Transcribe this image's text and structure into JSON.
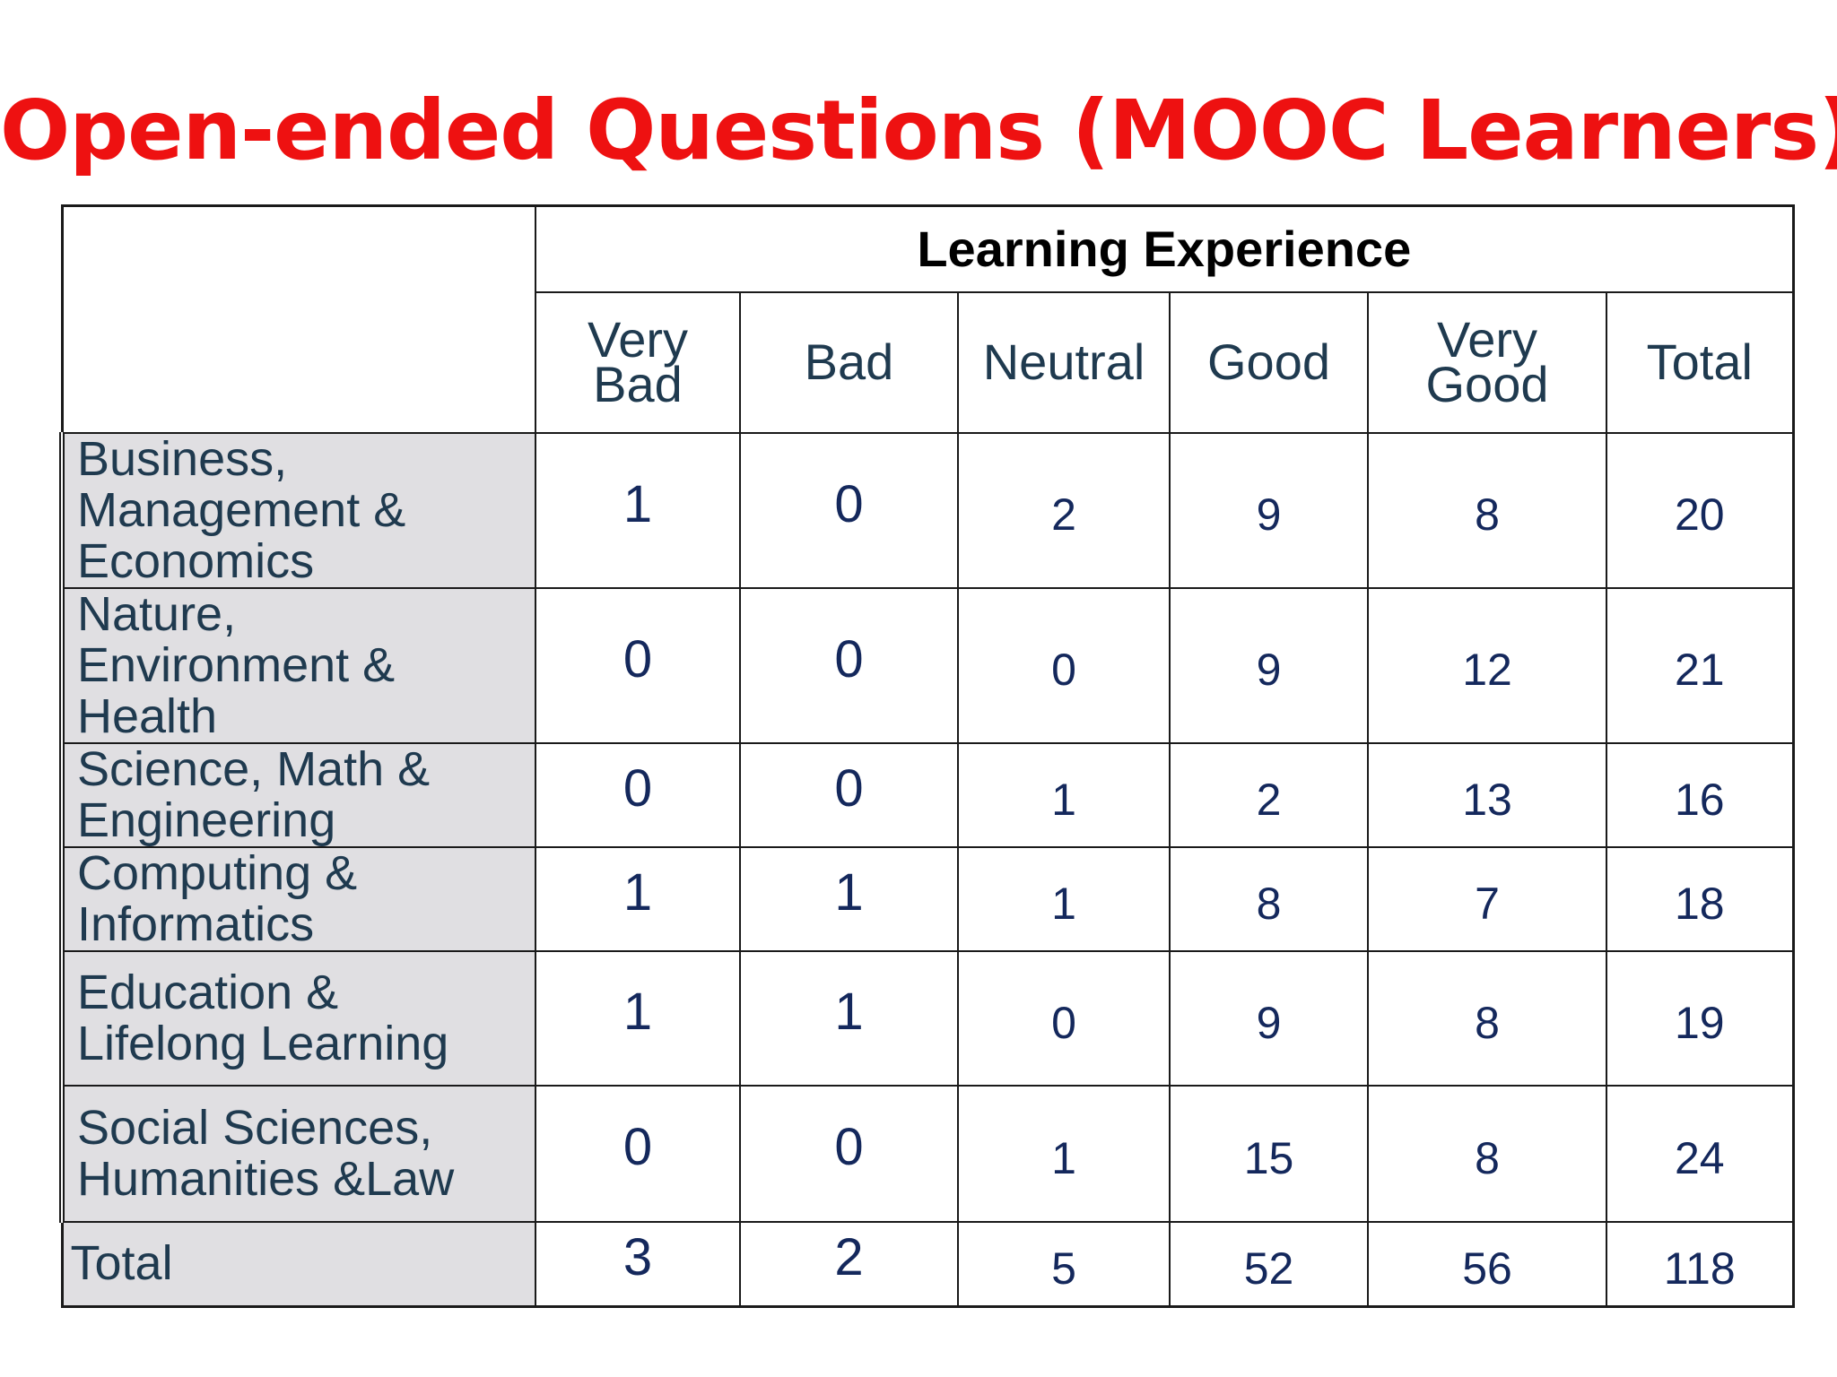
{
  "title": "Open-ended Questions (MOOC Learners)",
  "table": {
    "group_header": "Learning Experience",
    "columns": [
      "Very\nBad",
      "Bad",
      "Neutral",
      "Good",
      "Very\nGood",
      "Total"
    ],
    "rows": [
      {
        "label": "Business,\nManagement &\nEconomics",
        "values": [
          "1",
          "0",
          "2",
          "9",
          "8",
          "20"
        ]
      },
      {
        "label": "Nature,\nEnvironment &\nHealth",
        "values": [
          "0",
          "0",
          "0",
          "9",
          "12",
          "21"
        ]
      },
      {
        "label": "Science, Math &\nEngineering",
        "values": [
          "0",
          "0",
          "1",
          "2",
          "13",
          "16"
        ]
      },
      {
        "label": "Computing &\nInformatics",
        "values": [
          "1",
          "1",
          "1",
          "8",
          "7",
          "18"
        ]
      },
      {
        "label": "Education &\nLifelong Learning",
        "values": [
          "1",
          "1",
          "0",
          "9",
          "8",
          "19"
        ]
      },
      {
        "label": "Social Sciences,\nHumanities &Law",
        "values": [
          "0",
          "0",
          "1",
          "15",
          "8",
          "24"
        ]
      }
    ],
    "total_row": {
      "label": "Total",
      "values": [
        "3",
        "2",
        "5",
        "52",
        "56",
        "118"
      ]
    }
  }
}
